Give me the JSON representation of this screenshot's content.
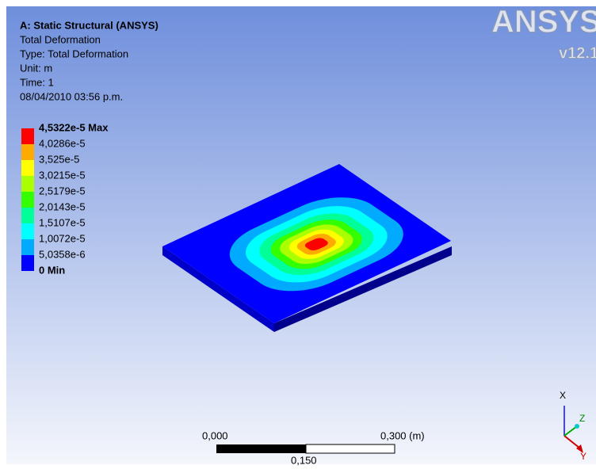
{
  "header": {
    "title": "A: Static Structural (ANSYS)",
    "lines": [
      "Total Deformation",
      "Type: Total Deformation",
      "Unit: m",
      "Time: 1",
      "08/04/2010 03:56 p.m."
    ]
  },
  "legend": {
    "labels": [
      "4,5322e-5 Max",
      "4,0286e-5",
      "3,525e-5",
      "3,0215e-5",
      "2,5179e-5",
      "2,0143e-5",
      "1,5107e-5",
      "1,0072e-5",
      "5,0358e-6",
      "0 Min"
    ],
    "colors": [
      "#ff0000",
      "#ffaa00",
      "#ffff00",
      "#aaff00",
      "#33ff00",
      "#00ff99",
      "#00ffff",
      "#00aaff",
      "#0000ff"
    ]
  },
  "logo": {
    "brand": "ANSYS",
    "version": "v12.1"
  },
  "scale_bar": {
    "start": "0,000",
    "end": "0,300 (m)",
    "middle": "0,150"
  },
  "triad": {
    "x": "X",
    "y": "Y",
    "z": "Z"
  }
}
